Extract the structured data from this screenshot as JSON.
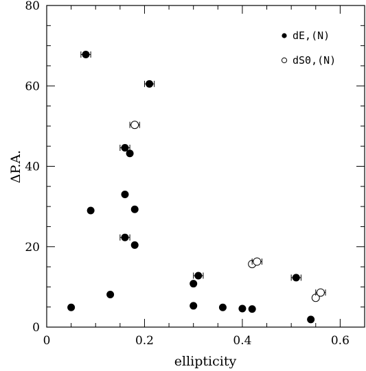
{
  "chart_data": {
    "type": "scatter",
    "xlabel": "ellipticity",
    "ylabel": "ΔP.A.",
    "xlim": [
      0,
      0.65
    ],
    "ylim": [
      0,
      80
    ],
    "x_ticks": [
      0,
      0.2,
      0.4,
      0.6
    ],
    "x_tick_labels": [
      "0",
      "0.2",
      "0.4",
      "0.6"
    ],
    "y_ticks": [
      0,
      20,
      40,
      60,
      80
    ],
    "y_tick_labels": [
      "0",
      "20",
      "40",
      "60",
      "80"
    ],
    "legend_position": "top-right",
    "series": [
      {
        "name": "dE,(N)",
        "marker": "filled-circle",
        "points": [
          {
            "x": 0.08,
            "y": 67.8,
            "xerr": 0.01
          },
          {
            "x": 0.21,
            "y": 60.5,
            "xerr": 0.01
          },
          {
            "x": 0.16,
            "y": 44.6,
            "xerr": 0.01
          },
          {
            "x": 0.17,
            "y": 43.2
          },
          {
            "x": 0.16,
            "y": 33.0
          },
          {
            "x": 0.18,
            "y": 29.3
          },
          {
            "x": 0.09,
            "y": 29.0
          },
          {
            "x": 0.16,
            "y": 22.3,
            "xerr": 0.01
          },
          {
            "x": 0.18,
            "y": 20.4
          },
          {
            "x": 0.31,
            "y": 12.8,
            "xerr": 0.01
          },
          {
            "x": 0.3,
            "y": 10.8
          },
          {
            "x": 0.51,
            "y": 12.3,
            "xerr": 0.01
          },
          {
            "x": 0.13,
            "y": 8.1
          },
          {
            "x": 0.05,
            "y": 4.9
          },
          {
            "x": 0.3,
            "y": 5.3
          },
          {
            "x": 0.36,
            "y": 4.9
          },
          {
            "x": 0.4,
            "y": 4.6
          },
          {
            "x": 0.42,
            "y": 4.5
          },
          {
            "x": 0.54,
            "y": 1.9
          }
        ]
      },
      {
        "name": "dS0,(N)",
        "marker": "open-circle",
        "points": [
          {
            "x": 0.18,
            "y": 50.3,
            "xerr": 0.01
          },
          {
            "x": 0.42,
            "y": 15.7
          },
          {
            "x": 0.43,
            "y": 16.3,
            "xerr": 0.01
          },
          {
            "x": 0.55,
            "y": 7.3
          },
          {
            "x": 0.56,
            "y": 8.6,
            "xerr": 0.01
          }
        ]
      }
    ]
  }
}
